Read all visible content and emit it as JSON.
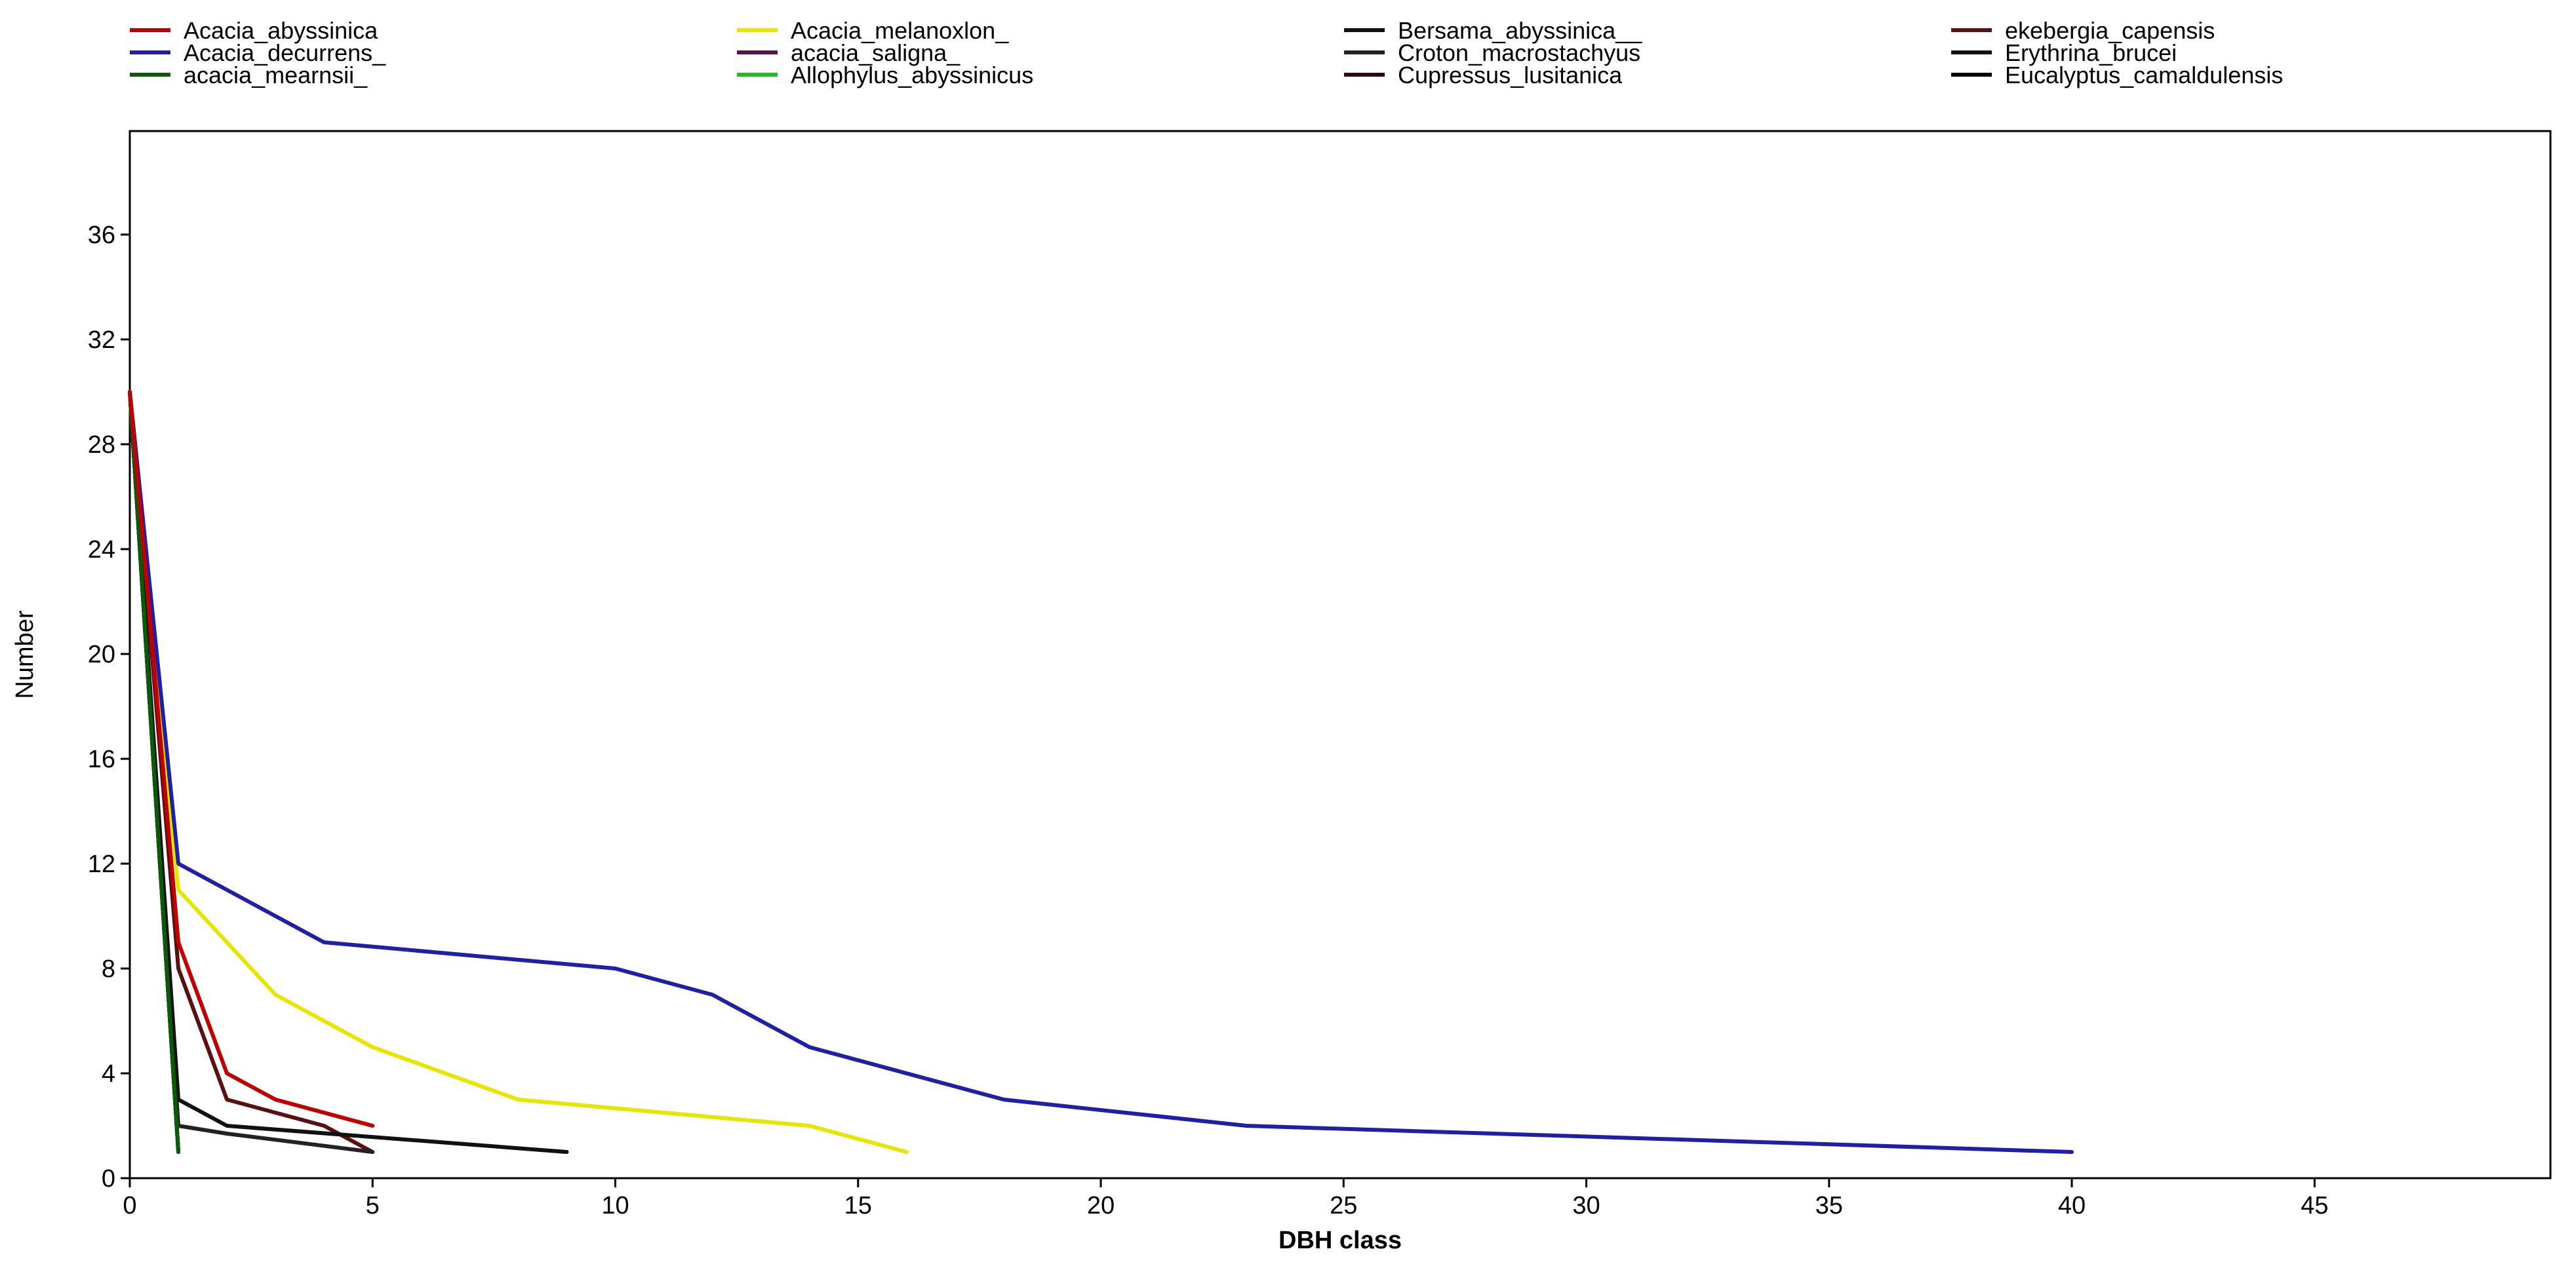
{
  "chart_data": {
    "type": "line",
    "title": "",
    "xlabel": "DBH class",
    "ylabel": "Number",
    "xlim": [
      0,
      50
    ],
    "ylim": [
      0,
      40
    ],
    "xticks": [
      "0",
      "5",
      "10",
      "15",
      "20",
      "25",
      "30",
      "35",
      "40",
      "45"
    ],
    "yticks": [
      "0",
      "4",
      "8",
      "12",
      "16",
      "20",
      "24",
      "28",
      "32",
      "36"
    ],
    "grid": false,
    "legend_position": "top",
    "series": [
      {
        "name": "Acacia_abyssinica",
        "color": "#c00000",
        "x": [
          0,
          1,
          2,
          3,
          5
        ],
        "y": [
          30,
          9,
          4,
          3,
          2
        ]
      },
      {
        "name": "Acacia_decurrens_",
        "color": "#1f1fa8",
        "x": [
          0,
          1,
          4,
          10,
          12,
          14,
          18,
          23,
          40
        ],
        "y": [
          30,
          12,
          9,
          8,
          7,
          5,
          3,
          2,
          1
        ]
      },
      {
        "name": "acacia_mearnsii_",
        "color": "#0a5a0a",
        "x": [
          0,
          1
        ],
        "y": [
          30,
          1
        ]
      },
      {
        "name": "Acacia_melanoxlon_",
        "color": "#e6e600",
        "x": [
          0,
          1,
          3,
          5,
          8,
          14,
          16
        ],
        "y": [
          30,
          11,
          7,
          5,
          3,
          2,
          1
        ]
      },
      {
        "name": "acacia_saligna_",
        "color": "#5a1040",
        "x": [
          0,
          1
        ],
        "y": [
          30,
          1
        ]
      },
      {
        "name": "Allophylus_abyssinicus",
        "color": "#22bb22",
        "x": [
          0,
          1
        ],
        "y": [
          30,
          1
        ]
      },
      {
        "name": "Bersama_abyssinica__",
        "color": "#111111",
        "x": [
          0,
          1,
          2,
          9
        ],
        "y": [
          30,
          3,
          2,
          1
        ]
      },
      {
        "name": "Croton_macrostachyus",
        "color": "#222222",
        "x": [
          0,
          1,
          2,
          5
        ],
        "y": [
          30,
          2,
          1.7,
          1
        ]
      },
      {
        "name": "Cupressus_lusitanica",
        "color": "#2a0a0a",
        "x": [
          0,
          1
        ],
        "y": [
          30,
          1
        ]
      },
      {
        "name": "ekebergia_capensis",
        "color": "#5a1010",
        "x": [
          0,
          1,
          2,
          4,
          5
        ],
        "y": [
          30,
          8,
          3,
          2,
          1
        ]
      },
      {
        "name": "Erythrina_brucei",
        "color": "#111111",
        "x": [
          0,
          1
        ],
        "y": [
          30,
          1
        ]
      },
      {
        "name": "Eucalyptus_camaldulensis",
        "color": "#000000",
        "x": [
          0,
          1
        ],
        "y": [
          30,
          1
        ]
      }
    ]
  }
}
